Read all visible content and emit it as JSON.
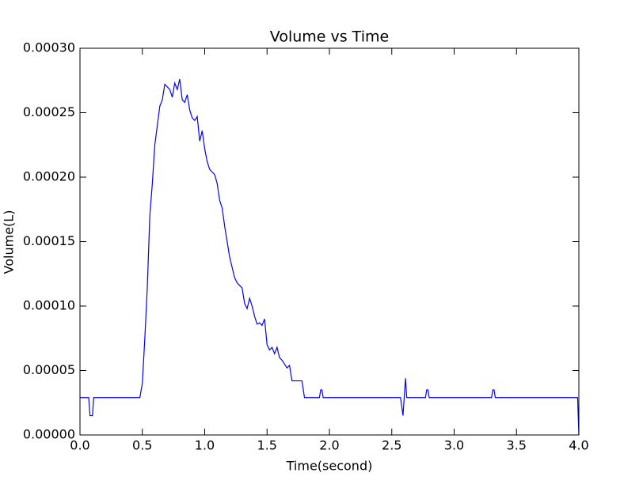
{
  "chart_data": {
    "type": "line",
    "title": "Volume vs Time",
    "x_label": "Time(second)",
    "y_label": "Volume(L)",
    "x": [
      0,
      0.07,
      0.08,
      0.1,
      0.11,
      0.48,
      0.5,
      0.52,
      0.54,
      0.56,
      0.58,
      0.6,
      0.62,
      0.64,
      0.66,
      0.68,
      0.7,
      0.72,
      0.74,
      0.76,
      0.78,
      0.8,
      0.82,
      0.84,
      0.86,
      0.88,
      0.9,
      0.92,
      0.94,
      0.96,
      0.98,
      1.0,
      1.02,
      1.04,
      1.06,
      1.08,
      1.1,
      1.12,
      1.14,
      1.16,
      1.18,
      1.2,
      1.22,
      1.24,
      1.26,
      1.28,
      1.3,
      1.32,
      1.34,
      1.36,
      1.38,
      1.4,
      1.42,
      1.44,
      1.46,
      1.48,
      1.5,
      1.52,
      1.54,
      1.56,
      1.58,
      1.6,
      1.62,
      1.64,
      1.66,
      1.68,
      1.7,
      1.78,
      1.8,
      1.92,
      1.93,
      1.94,
      1.95,
      2.57,
      2.59,
      2.61,
      2.62,
      2.77,
      2.78,
      2.79,
      2.8,
      3.3,
      3.31,
      3.32,
      3.33,
      3.99,
      4.0
    ],
    "series": [
      {
        "color": "#0000ff",
        "values": [
          2.9e-05,
          2.9e-05,
          1.5e-05,
          1.5e-05,
          2.9e-05,
          2.9e-05,
          4e-05,
          7.5e-05,
          0.000115,
          0.00017,
          0.000195,
          0.000225,
          0.00024,
          0.000255,
          0.00026,
          0.000272,
          0.00027,
          0.000268,
          0.000262,
          0.000273,
          0.000268,
          0.000276,
          0.00026,
          0.000258,
          0.000264,
          0.000252,
          0.000246,
          0.000244,
          0.000247,
          0.000228,
          0.000236,
          0.000222,
          0.000212,
          0.000206,
          0.000204,
          0.000202,
          0.000195,
          0.000182,
          0.000176,
          0.000162,
          0.00015,
          0.000138,
          0.00013,
          0.000122,
          0.000118,
          0.000116,
          0.000114,
          0.000102,
          9.8e-05,
          0.000106,
          0.0001,
          9.2e-05,
          8.6e-05,
          8.7e-05,
          8.5e-05,
          9e-05,
          7e-05,
          6.6e-05,
          6.8e-05,
          6.3e-05,
          6.8e-05,
          6e-05,
          5.8e-05,
          5.5e-05,
          5.2e-05,
          5.4e-05,
          4.2e-05,
          4.2e-05,
          2.9e-05,
          2.9e-05,
          3.5e-05,
          3.5e-05,
          2.9e-05,
          2.9e-05,
          1.5e-05,
          4.4e-05,
          2.9e-05,
          2.9e-05,
          3.5e-05,
          3.5e-05,
          2.9e-05,
          2.9e-05,
          3.5e-05,
          3.5e-05,
          2.9e-05,
          2.9e-05,
          0
        ]
      }
    ],
    "xlim": [
      0,
      4
    ],
    "ylim": [
      0,
      0.0003
    ],
    "xticks": [
      {
        "value": 0,
        "label": "0.0"
      },
      0.5,
      {
        "value": 1,
        "label": "1.0"
      },
      1.5,
      {
        "value": 2,
        "label": "2.0"
      },
      2.5,
      {
        "value": 3,
        "label": "3.0"
      },
      3.5,
      {
        "value": 4,
        "label": "4.0"
      }
    ],
    "yticks": [
      {
        "value": 0,
        "label": "0.00000"
      },
      {
        "value": 5e-05,
        "label": "0.00005"
      },
      {
        "value": 0.0001,
        "label": "0.00010"
      },
      {
        "value": 0.00015,
        "label": "0.00015"
      },
      {
        "value": 0.0002,
        "label": "0.00020"
      },
      {
        "value": 0.00025,
        "label": "0.00025"
      },
      {
        "value": 0.0003,
        "label": "0.00030"
      }
    ]
  }
}
